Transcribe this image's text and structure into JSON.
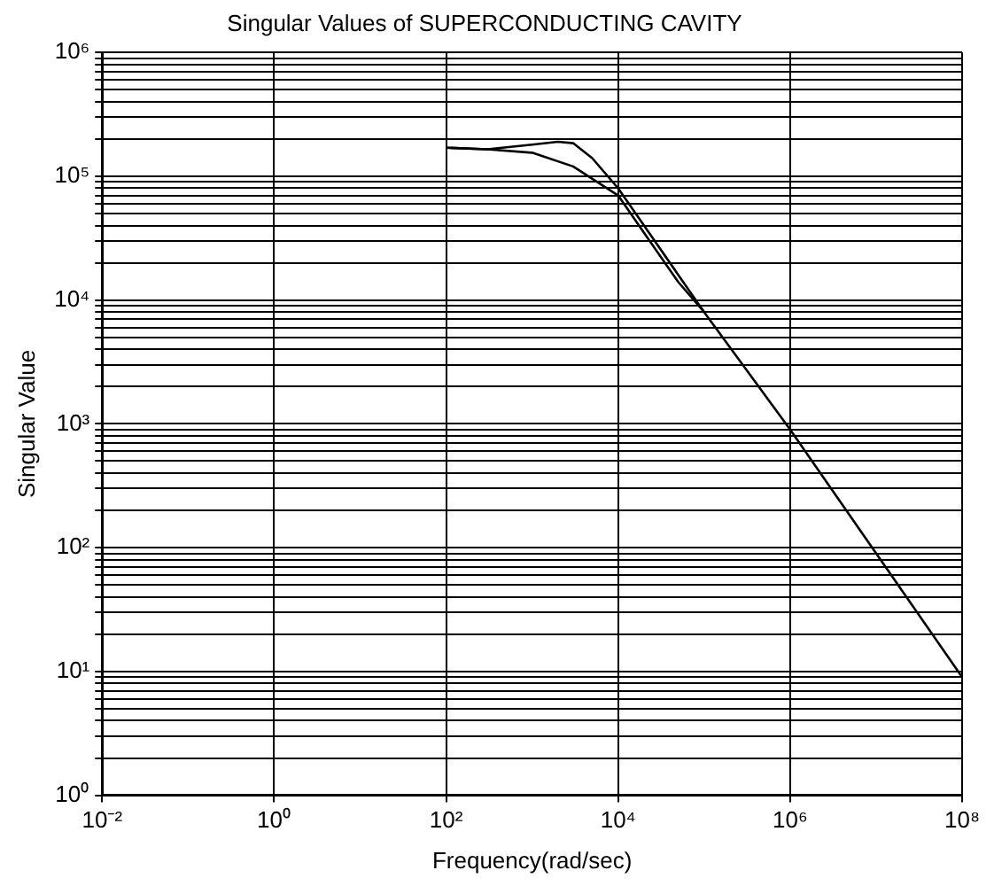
{
  "chart_data": {
    "type": "line",
    "title": "Singular Values of SUPERCONDUCTING CAVITY",
    "xlabel": "Frequency(rad/sec)",
    "ylabel": "Singular Value",
    "log": "xy",
    "grid": true,
    "legend": false,
    "marker": "none",
    "line_style": "solid",
    "xlim": [
      0.01,
      100000000
    ],
    "ylim": [
      1,
      1000000
    ],
    "xticks": [
      {
        "value": 0.01,
        "label": "10⁻²"
      },
      {
        "value": 1,
        "label": "10⁰"
      },
      {
        "value": 100,
        "label": "10²"
      },
      {
        "value": 10000,
        "label": "10⁴"
      },
      {
        "value": 1000000,
        "label": "10⁶"
      },
      {
        "value": 100000000,
        "label": "10⁸"
      }
    ],
    "yticks": [
      {
        "value": 1,
        "label": "10⁰"
      },
      {
        "value": 2,
        "label": null
      },
      {
        "value": 3,
        "label": null
      },
      {
        "value": 4,
        "label": null
      },
      {
        "value": 5,
        "label": null
      },
      {
        "value": 6,
        "label": null
      },
      {
        "value": 7,
        "label": null
      },
      {
        "value": 8,
        "label": null
      },
      {
        "value": 9,
        "label": null
      },
      {
        "value": 10,
        "label": "10¹"
      },
      {
        "value": 20,
        "label": null
      },
      {
        "value": 30,
        "label": null
      },
      {
        "value": 40,
        "label": null
      },
      {
        "value": 50,
        "label": null
      },
      {
        "value": 60,
        "label": null
      },
      {
        "value": 70,
        "label": null
      },
      {
        "value": 80,
        "label": null
      },
      {
        "value": 90,
        "label": null
      },
      {
        "value": 100,
        "label": "10²"
      },
      {
        "value": 200,
        "label": null
      },
      {
        "value": 300,
        "label": null
      },
      {
        "value": 400,
        "label": null
      },
      {
        "value": 500,
        "label": null
      },
      {
        "value": 600,
        "label": null
      },
      {
        "value": 700,
        "label": null
      },
      {
        "value": 800,
        "label": null
      },
      {
        "value": 900,
        "label": null
      },
      {
        "value": 1000,
        "label": "10³"
      },
      {
        "value": 2000,
        "label": null
      },
      {
        "value": 3000,
        "label": null
      },
      {
        "value": 4000,
        "label": null
      },
      {
        "value": 5000,
        "label": null
      },
      {
        "value": 6000,
        "label": null
      },
      {
        "value": 7000,
        "label": null
      },
      {
        "value": 8000,
        "label": null
      },
      {
        "value": 9000,
        "label": null
      },
      {
        "value": 10000,
        "label": "10⁴"
      },
      {
        "value": 20000,
        "label": null
      },
      {
        "value": 30000,
        "label": null
      },
      {
        "value": 40000,
        "label": null
      },
      {
        "value": 50000,
        "label": null
      },
      {
        "value": 60000,
        "label": null
      },
      {
        "value": 70000,
        "label": null
      },
      {
        "value": 80000,
        "label": null
      },
      {
        "value": 90000,
        "label": null
      },
      {
        "value": 100000,
        "label": "10⁵"
      },
      {
        "value": 200000,
        "label": null
      },
      {
        "value": 300000,
        "label": null
      },
      {
        "value": 400000,
        "label": null
      },
      {
        "value": 500000,
        "label": null
      },
      {
        "value": 600000,
        "label": null
      },
      {
        "value": 700000,
        "label": null
      },
      {
        "value": 800000,
        "label": null
      },
      {
        "value": 900000,
        "label": null
      },
      {
        "value": 1000000,
        "label": "10⁶"
      }
    ],
    "series": [
      {
        "color": "#000000",
        "x": [
          100,
          300,
          1000,
          2000,
          3000,
          5000,
          10000,
          20000,
          50000,
          100000,
          1000000,
          10000000,
          100000000
        ],
        "values": [
          170000,
          165000,
          180000,
          190000,
          185000,
          140000,
          80000,
          40000,
          16000,
          8000,
          900,
          90,
          9
        ]
      },
      {
        "color": "#000000",
        "x": [
          100,
          300,
          1000,
          3000,
          10000,
          20000,
          50000,
          100000
        ],
        "values": [
          170000,
          165000,
          155000,
          120000,
          70000,
          35000,
          14000,
          8000
        ]
      }
    ]
  }
}
